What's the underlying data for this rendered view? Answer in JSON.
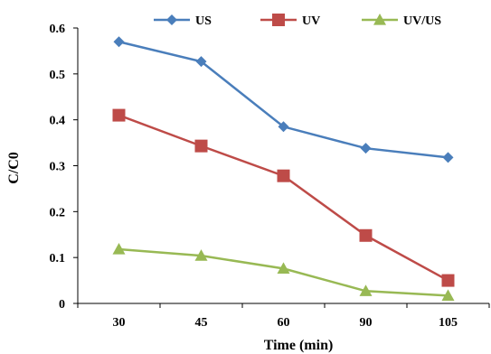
{
  "chart_data": {
    "type": "line",
    "categories": [
      "30",
      "45",
      "60",
      "90",
      "105"
    ],
    "series": [
      {
        "name": "US",
        "values": [
          0.57,
          0.527,
          0.385,
          0.338,
          0.318
        ],
        "color": "#4a7ebb",
        "marker": "diamond"
      },
      {
        "name": "UV",
        "values": [
          0.41,
          0.343,
          0.278,
          0.148,
          0.05
        ],
        "color": "#be4b48",
        "marker": "square"
      },
      {
        "name": "UV/US",
        "values": [
          0.118,
          0.104,
          0.076,
          0.027,
          0.017
        ],
        "color": "#98b954",
        "marker": "triangle"
      }
    ],
    "xlabel": "Time (min)",
    "ylabel": "C/C0",
    "ylim": [
      0,
      0.6
    ],
    "yticks": [
      "0",
      "0.1",
      "0.2",
      "0.3",
      "0.4",
      "0.5",
      "0.6"
    ],
    "grid": false,
    "legend": "top"
  }
}
